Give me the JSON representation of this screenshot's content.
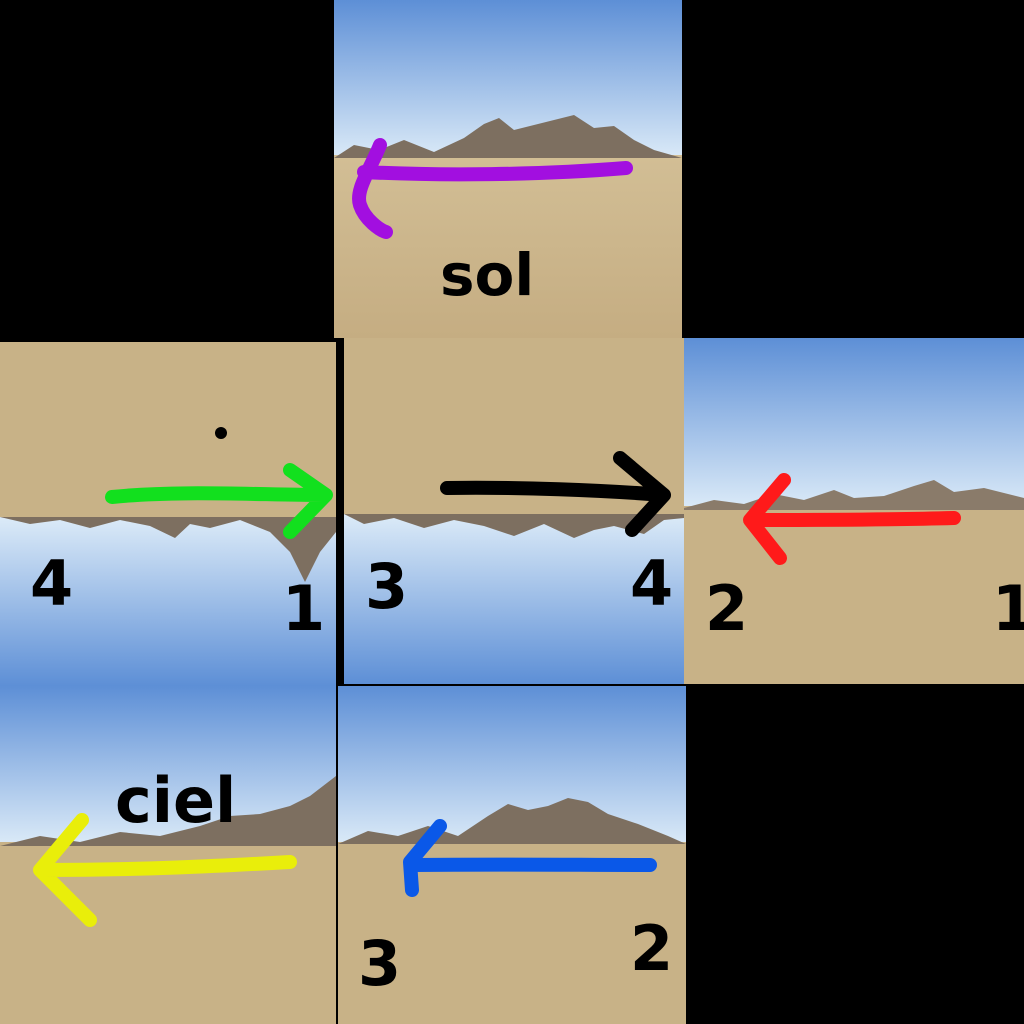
{
  "colors": {
    "background": "#000000",
    "sky_top": "#5d8fd6",
    "sky_horizon": "#dcebf8",
    "sand": "#c8b287",
    "sand_dark": "#b39a6c",
    "mountain": "#7d6f60",
    "arrow_purple": "#a20fe0",
    "arrow_green": "#12e01e",
    "arrow_black": "#000000",
    "arrow_red": "#ff1a1a",
    "arrow_blue": "#0a58e8",
    "arrow_yellow": "#e9ee0a"
  },
  "labels": {
    "sol": "sol",
    "ciel": "ciel",
    "left_tile_left": "4",
    "left_tile_right": "1",
    "center_tile_left": "3",
    "center_tile_right": "4",
    "right_tile_left": "2",
    "right_tile_right": "1",
    "bottom_tile_left": "3",
    "bottom_tile_right": "2"
  }
}
